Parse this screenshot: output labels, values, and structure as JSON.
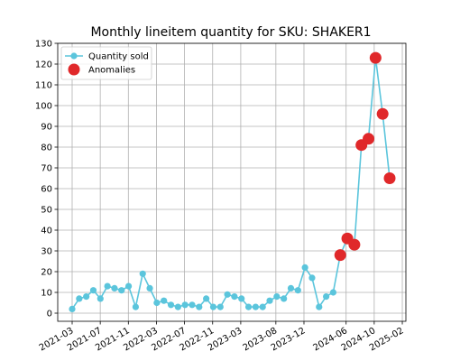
{
  "chart_data": {
    "type": "line",
    "title": "Monthly lineitem quantity for SKU: SHAKER1",
    "xlabel": "",
    "ylabel": "",
    "ylim": [
      0,
      130
    ],
    "yticks": [
      0,
      10,
      20,
      30,
      40,
      50,
      60,
      70,
      80,
      90,
      100,
      110,
      120,
      130
    ],
    "xtick_labels": [
      "2021-03",
      "2021-07",
      "2021-11",
      "2022-03",
      "2022-07",
      "2022-11",
      "2023-03",
      "2023-08",
      "2023-12",
      "2024-06",
      "2024-10",
      "2025-02"
    ],
    "grid": true,
    "legend": {
      "position": "top-left",
      "entries": [
        "Quantity sold",
        "Anomalies"
      ]
    },
    "colors": {
      "line": "#5bc5dc",
      "anomaly": "#e0282a",
      "grid": "#b0b0b0"
    },
    "series": [
      {
        "name": "Quantity sold",
        "values": [
          2,
          7,
          8,
          11,
          7,
          13,
          12,
          11,
          13,
          3,
          19,
          12,
          5,
          6,
          4,
          3,
          4,
          4,
          3,
          7,
          3,
          3,
          9,
          8,
          7,
          3,
          3,
          3,
          6,
          8,
          7,
          12,
          11,
          22,
          17,
          3,
          8,
          10,
          28,
          36,
          33,
          81,
          84,
          123,
          96,
          65
        ]
      },
      {
        "name": "Anomalies",
        "points": [
          [
            38,
            28
          ],
          [
            39,
            36
          ],
          [
            40,
            33
          ],
          [
            41,
            81
          ],
          [
            42,
            84
          ],
          [
            43,
            123
          ],
          [
            44,
            96
          ],
          [
            45,
            65
          ]
        ]
      }
    ]
  }
}
